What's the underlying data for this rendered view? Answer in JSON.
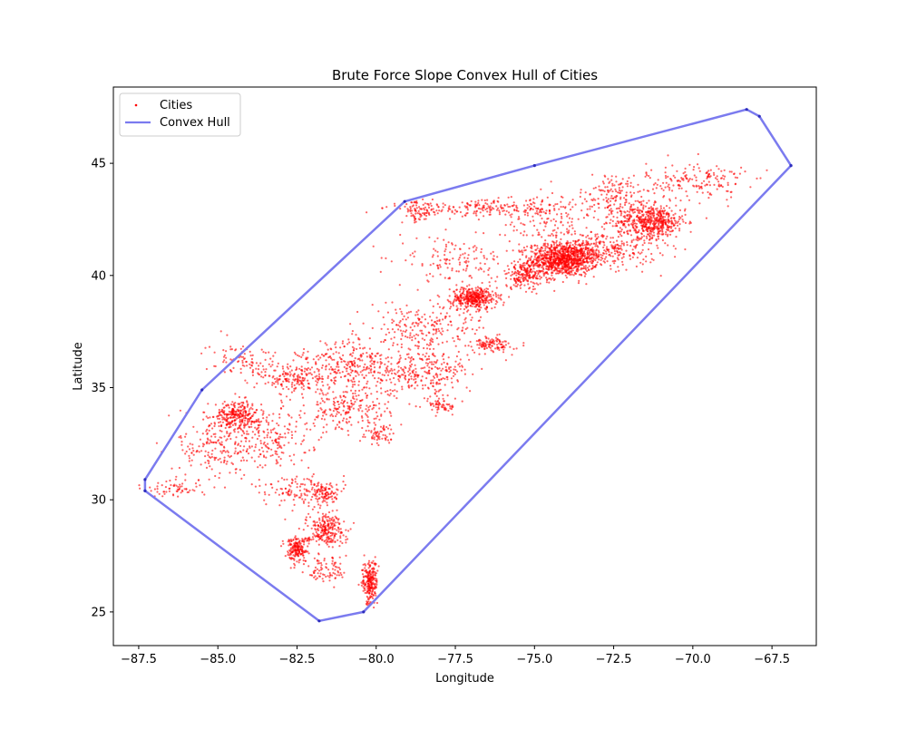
{
  "chart_data": {
    "type": "scatter",
    "title": "Brute Force Slope Convex Hull of Cities",
    "xlabel": "Longitude",
    "ylabel": "Latitude",
    "xlim": [
      -88.3,
      -66.1
    ],
    "ylim": [
      23.5,
      48.4
    ],
    "xticks": [
      -87.5,
      -85.0,
      -82.5,
      -80.0,
      -77.5,
      -75.0,
      -72.5,
      -70.0,
      -67.5
    ],
    "xtick_labels": [
      "−87.5",
      "−85.0",
      "−82.5",
      "−80.0",
      "−77.5",
      "−75.0",
      "−72.5",
      "−70.0",
      "−67.5"
    ],
    "yticks": [
      25,
      30,
      35,
      40,
      45
    ],
    "ytick_labels": [
      "25",
      "30",
      "35",
      "40",
      "45"
    ],
    "grid": false,
    "legend": {
      "position": "top-left",
      "entries": [
        {
          "label": "Cities",
          "kind": "marker",
          "color": "#ff0000"
        },
        {
          "label": "Convex Hull",
          "kind": "line",
          "color": "#7b7bef"
        }
      ]
    },
    "series": [
      {
        "name": "Convex Hull",
        "kind": "line",
        "color": "#7b7bef",
        "points": [
          [
            -87.3,
            30.4
          ],
          [
            -87.3,
            30.9
          ],
          [
            -85.5,
            34.9
          ],
          [
            -79.1,
            43.3
          ],
          [
            -75.0,
            44.9
          ],
          [
            -68.3,
            47.4
          ],
          [
            -67.9,
            47.1
          ],
          [
            -66.9,
            44.9
          ],
          [
            -80.4,
            25.0
          ],
          [
            -81.8,
            24.6
          ],
          [
            -87.3,
            30.4
          ]
        ]
      },
      {
        "name": "Cities",
        "kind": "scatter",
        "color": "#ff0000",
        "clusters": [
          {
            "center": [
              -74.1,
              40.7
            ],
            "spread": [
              0.9,
              0.6
            ],
            "count": 900
          },
          {
            "center": [
              -71.3,
              42.4
            ],
            "spread": [
              0.9,
              0.6
            ],
            "count": 520
          },
          {
            "center": [
              -73.0,
              41.2
            ],
            "spread": [
              1.6,
              0.7
            ],
            "count": 350
          },
          {
            "center": [
              -69.9,
              44.2
            ],
            "spread": [
              1.3,
              0.7
            ],
            "count": 170
          },
          {
            "center": [
              -72.4,
              43.5
            ],
            "spread": [
              1.0,
              0.9
            ],
            "count": 170
          },
          {
            "center": [
              -76.9,
              39.0
            ],
            "spread": [
              0.6,
              0.4
            ],
            "count": 380
          },
          {
            "center": [
              -75.3,
              40.0
            ],
            "spread": [
              0.7,
              0.5
            ],
            "count": 200
          },
          {
            "center": [
              -76.4,
              43.0
            ],
            "spread": [
              2.6,
              0.3
            ],
            "count": 220
          },
          {
            "center": [
              -78.7,
              42.8
            ],
            "spread": [
              0.4,
              0.4
            ],
            "count": 70
          },
          {
            "center": [
              -74.7,
              42.4
            ],
            "spread": [
              1.0,
              1.0
            ],
            "count": 110
          },
          {
            "center": [
              -77.6,
              40.7
            ],
            "spread": [
              1.4,
              0.8
            ],
            "count": 130
          },
          {
            "center": [
              -78.4,
              37.6
            ],
            "spread": [
              1.6,
              1.1
            ],
            "count": 260
          },
          {
            "center": [
              -80.6,
              35.9
            ],
            "spread": [
              1.5,
              1.0
            ],
            "count": 330
          },
          {
            "center": [
              -80.9,
              34.0
            ],
            "spread": [
              1.1,
              0.8
            ],
            "count": 200
          },
          {
            "center": [
              -78.4,
              35.6
            ],
            "spread": [
              1.2,
              0.8
            ],
            "count": 200
          },
          {
            "center": [
              -84.4,
              33.8
            ],
            "spread": [
              0.6,
              0.5
            ],
            "count": 260
          },
          {
            "center": [
              -83.6,
              32.8
            ],
            "spread": [
              1.3,
              1.3
            ],
            "count": 260
          },
          {
            "center": [
              -85.2,
              32.3
            ],
            "spread": [
              0.9,
              1.2
            ],
            "count": 150
          },
          {
            "center": [
              -82.6,
              35.4
            ],
            "spread": [
              0.9,
              0.6
            ],
            "count": 160
          },
          {
            "center": [
              -86.3,
              30.5
            ],
            "spread": [
              0.8,
              0.3
            ],
            "count": 60
          },
          {
            "center": [
              -82.5,
              30.4
            ],
            "spread": [
              0.9,
              0.6
            ],
            "count": 120
          },
          {
            "center": [
              -81.6,
              28.7
            ],
            "spread": [
              0.5,
              0.6
            ],
            "count": 240
          },
          {
            "center": [
              -82.5,
              27.8
            ],
            "spread": [
              0.3,
              0.5
            ],
            "count": 190
          },
          {
            "center": [
              -80.2,
              26.3
            ],
            "spread": [
              0.2,
              0.8
            ],
            "count": 230
          },
          {
            "center": [
              -81.5,
              26.9
            ],
            "spread": [
              0.5,
              0.6
            ],
            "count": 80
          },
          {
            "center": [
              -81.6,
              30.3
            ],
            "spread": [
              0.4,
              0.4
            ],
            "count": 90
          },
          {
            "center": [
              -79.9,
              32.9
            ],
            "spread": [
              0.4,
              0.4
            ],
            "count": 60
          },
          {
            "center": [
              -77.9,
              34.2
            ],
            "spread": [
              0.4,
              0.3
            ],
            "count": 60
          },
          {
            "center": [
              -76.3,
              36.9
            ],
            "spread": [
              0.5,
              0.3
            ],
            "count": 100
          },
          {
            "center": [
              -84.2,
              36.3
            ],
            "spread": [
              1.0,
              0.6
            ],
            "count": 90
          }
        ]
      }
    ]
  }
}
